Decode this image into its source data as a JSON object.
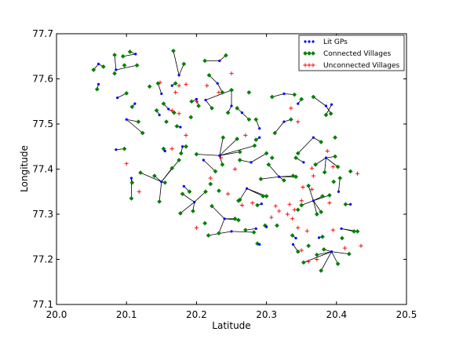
{
  "chart_data": {
    "type": "scatter",
    "xlabel": "Latitude",
    "ylabel": "Longitude",
    "xlim": [
      20.0,
      20.5
    ],
    "ylim": [
      77.1,
      77.7
    ],
    "xticks": [
      "20.0",
      "20.1",
      "20.2",
      "20.3",
      "20.4",
      "20.5"
    ],
    "yticks": [
      "77.1",
      "77.2",
      "77.3",
      "77.4",
      "77.5",
      "77.6",
      "77.7"
    ],
    "legend_position": "top-right",
    "legend": [
      {
        "label": "Lit GPs",
        "marker": "dot",
        "color": "#0000ff"
      },
      {
        "label": "Connected Villages",
        "marker": "diamond",
        "color": "#008000"
      },
      {
        "label": "Unconnected Villages",
        "marker": "plus",
        "color": "#ff0000"
      }
    ],
    "colors": {
      "lit": "#0000ff",
      "connected": "#008000",
      "unconnected": "#ff0000",
      "link": "#000000"
    },
    "lit_gps": [
      {
        "x": 20.06,
        "y": 77.633,
        "links": [
          [
            20.053,
            77.62
          ],
          [
            20.067,
            77.627
          ]
        ]
      },
      {
        "x": 20.06,
        "y": 77.588,
        "links": [
          [
            20.058,
            77.577
          ]
        ]
      },
      {
        "x": 20.085,
        "y": 77.62,
        "links": [
          [
            20.083,
            77.653
          ],
          [
            20.115,
            77.63
          ]
        ]
      },
      {
        "x": 20.113,
        "y": 77.655,
        "links": [
          [
            20.105,
            77.66
          ],
          [
            20.095,
            77.65
          ]
        ]
      },
      {
        "x": 20.087,
        "y": 77.558,
        "links": [
          [
            20.1,
            77.568
          ]
        ]
      },
      {
        "x": 20.112,
        "y": 77.545,
        "links": [
          [
            20.108,
            77.538
          ]
        ]
      },
      {
        "x": 20.1,
        "y": 77.51,
        "links": [
          [
            20.123,
            77.48
          ],
          [
            20.117,
            77.505
          ]
        ]
      },
      {
        "x": 20.085,
        "y": 77.443,
        "links": [
          [
            20.097,
            77.445
          ]
        ]
      },
      {
        "x": 20.15,
        "y": 77.567,
        "links": [
          [
            20.145,
            77.59
          ]
        ]
      },
      {
        "x": 20.16,
        "y": 77.533,
        "links": [
          [
            20.153,
            77.545
          ],
          [
            20.168,
            77.525
          ]
        ]
      },
      {
        "x": 20.147,
        "y": 77.52,
        "links": [
          [
            20.143,
            77.53
          ]
        ]
      },
      {
        "x": 20.177,
        "y": 77.493,
        "links": [
          [
            20.172,
            77.495
          ]
        ]
      },
      {
        "x": 20.165,
        "y": 77.585,
        "links": [
          [
            20.17,
            77.59
          ]
        ]
      },
      {
        "x": 20.175,
        "y": 77.608,
        "links": [
          [
            20.167,
            77.662
          ],
          [
            20.182,
            77.633
          ]
        ]
      },
      {
        "x": 20.2,
        "y": 77.555,
        "links": [
          [
            20.193,
            77.55
          ],
          [
            20.203,
            77.54
          ]
        ]
      },
      {
        "x": 20.213,
        "y": 77.553,
        "links": [
          [
            20.25,
            77.575
          ],
          [
            20.222,
            77.535
          ]
        ]
      },
      {
        "x": 20.23,
        "y": 77.59,
        "links": [
          [
            20.218,
            77.608
          ],
          [
            20.237,
            77.57
          ]
        ]
      },
      {
        "x": 20.233,
        "y": 77.64,
        "links": [
          [
            20.212,
            77.64
          ],
          [
            20.242,
            77.652
          ]
        ]
      },
      {
        "x": 20.25,
        "y": 77.54,
        "links": [
          [
            20.25,
            77.575
          ],
          [
            20.245,
            77.525
          ]
        ]
      },
      {
        "x": 20.265,
        "y": 77.525,
        "links": [
          [
            20.275,
            77.51
          ],
          [
            20.258,
            77.535
          ]
        ]
      },
      {
        "x": 20.29,
        "y": 77.49,
        "links": [
          [
            20.285,
            77.51
          ]
        ]
      },
      {
        "x": 20.29,
        "y": 77.47,
        "links": [
          [
            20.285,
            77.465
          ]
        ]
      },
      {
        "x": 20.325,
        "y": 77.567,
        "links": [
          [
            20.308,
            77.56
          ],
          [
            20.34,
            77.565
          ]
        ]
      },
      {
        "x": 20.345,
        "y": 77.545,
        "links": [
          [
            20.35,
            77.555
          ]
        ]
      },
      {
        "x": 20.325,
        "y": 77.505,
        "links": [
          [
            20.312,
            77.48
          ],
          [
            20.335,
            77.51
          ]
        ]
      },
      {
        "x": 20.367,
        "y": 77.47,
        "links": [
          [
            20.345,
            77.435
          ],
          [
            20.378,
            77.46
          ]
        ]
      },
      {
        "x": 20.385,
        "y": 77.54,
        "links": [
          [
            20.367,
            77.56
          ],
          [
            20.392,
            77.523
          ]
        ]
      },
      {
        "x": 20.393,
        "y": 77.543,
        "links": [
          [
            20.385,
            77.52
          ]
        ]
      },
      {
        "x": 20.353,
        "y": 77.415,
        "links": [
          [
            20.342,
            77.425
          ]
        ]
      },
      {
        "x": 20.155,
        "y": 77.44,
        "links": [
          [
            20.153,
            77.445
          ]
        ]
      },
      {
        "x": 20.18,
        "y": 77.45,
        "links": [
          [
            20.185,
            77.45
          ],
          [
            20.178,
            77.435
          ]
        ]
      },
      {
        "x": 20.107,
        "y": 77.38,
        "links": [
          [
            20.107,
            77.335
          ],
          [
            20.108,
            77.37
          ]
        ]
      },
      {
        "x": 20.15,
        "y": 77.372,
        "links": [
          [
            20.12,
            77.392
          ],
          [
            20.147,
            77.328
          ],
          [
            20.155,
            77.37
          ],
          [
            20.165,
            77.402
          ],
          [
            20.175,
            77.42
          ],
          [
            20.14,
            77.385
          ]
        ]
      },
      {
        "x": 20.182,
        "y": 77.362,
        "links": [
          [
            20.19,
            77.35
          ]
        ]
      },
      {
        "x": 20.197,
        "y": 77.327,
        "links": [
          [
            20.18,
            77.345
          ],
          [
            20.177,
            77.302
          ],
          [
            20.195,
            77.307
          ],
          [
            20.213,
            77.35
          ]
        ]
      },
      {
        "x": 20.21,
        "y": 77.42,
        "links": [
          [
            20.227,
            77.395
          ]
        ]
      },
      {
        "x": 20.233,
        "y": 77.43,
        "links": [
          [
            20.2,
            77.433
          ],
          [
            20.262,
            77.438
          ],
          [
            20.283,
            77.452
          ],
          [
            20.238,
            77.47
          ],
          [
            20.258,
            77.467
          ],
          [
            20.237,
            77.41
          ]
        ]
      },
      {
        "x": 20.24,
        "y": 77.29,
        "links": [
          [
            20.222,
            77.318
          ],
          [
            20.232,
            77.258
          ],
          [
            20.255,
            77.29
          ],
          [
            20.26,
            77.287
          ]
        ]
      },
      {
        "x": 20.25,
        "y": 77.262,
        "links": [
          [
            20.217,
            77.253
          ],
          [
            20.282,
            77.26
          ]
        ]
      },
      {
        "x": 20.272,
        "y": 77.357,
        "links": [
          [
            20.262,
            77.332
          ],
          [
            20.295,
            77.34
          ],
          [
            20.3,
            77.34
          ]
        ]
      },
      {
        "x": 20.293,
        "y": 77.323,
        "links": [
          [
            20.287,
            77.32
          ]
        ]
      },
      {
        "x": 20.285,
        "y": 77.268,
        "links": [
          [
            20.27,
            77.265
          ]
        ]
      },
      {
        "x": 20.3,
        "y": 77.272,
        "links": [
          [
            20.298,
            77.275
          ]
        ]
      },
      {
        "x": 20.29,
        "y": 77.233,
        "links": [
          [
            20.287,
            77.235
          ]
        ]
      },
      {
        "x": 20.318,
        "y": 77.383,
        "links": [
          [
            20.292,
            77.378
          ],
          [
            20.325,
            77.375
          ],
          [
            20.338,
            77.385
          ],
          [
            20.342,
            77.383
          ],
          [
            20.303,
            77.41
          ]
        ]
      },
      {
        "x": 20.367,
        "y": 77.33,
        "links": [
          [
            20.35,
            77.32
          ],
          [
            20.378,
            77.305
          ],
          [
            20.38,
            77.34
          ],
          [
            20.36,
            77.363
          ],
          [
            20.39,
            77.342
          ],
          [
            20.372,
            77.3
          ]
        ]
      },
      {
        "x": 20.385,
        "y": 77.425,
        "links": [
          [
            20.37,
            77.41
          ],
          [
            20.398,
            77.428
          ],
          [
            20.402,
            77.405
          ],
          [
            20.383,
            77.393
          ]
        ]
      },
      {
        "x": 20.393,
        "y": 77.217,
        "links": [
          [
            20.353,
            77.193
          ],
          [
            20.382,
            77.222
          ],
          [
            20.378,
            77.175
          ],
          [
            20.402,
            77.19
          ],
          [
            20.418,
            77.212
          ],
          [
            20.372,
            77.21
          ]
        ]
      },
      {
        "x": 20.407,
        "y": 77.268,
        "links": [
          [
            20.43,
            77.262
          ],
          [
            20.425,
            77.262
          ]
        ]
      },
      {
        "x": 20.403,
        "y": 77.35,
        "links": [
          [
            20.405,
            77.38
          ]
        ]
      },
      {
        "x": 20.42,
        "y": 77.322,
        "links": [
          [
            20.413,
            77.322
          ]
        ]
      },
      {
        "x": 20.375,
        "y": 77.248,
        "links": [
          [
            20.38,
            77.25
          ]
        ]
      },
      {
        "x": 20.342,
        "y": 77.247,
        "links": [
          [
            20.337,
            77.253
          ]
        ]
      },
      {
        "x": 20.338,
        "y": 77.233,
        "links": [
          [
            20.345,
            77.217
          ]
        ]
      },
      {
        "x": 20.278,
        "y": 77.415,
        "links": [
          [
            20.3,
            77.435
          ],
          [
            20.262,
            77.42
          ]
        ]
      }
    ],
    "extra_connected": [
      [
        20.083,
        77.612
      ],
      [
        20.097,
        77.63
      ],
      [
        20.133,
        77.583
      ],
      [
        20.157,
        77.505
      ],
      [
        20.192,
        77.515
      ],
      [
        20.275,
        77.57
      ],
      [
        20.308,
        77.425
      ],
      [
        20.22,
        77.367
      ],
      [
        20.232,
        77.352
      ],
      [
        20.212,
        77.28
      ],
      [
        20.26,
        77.33
      ],
      [
        20.315,
        77.275
      ],
      [
        20.345,
        77.31
      ],
      [
        20.36,
        77.23
      ],
      [
        20.396,
        77.372
      ],
      [
        20.408,
        77.247
      ],
      [
        20.398,
        77.47
      ],
      [
        20.42,
        77.395
      ]
    ],
    "unconnected": [
      [
        20.148,
        77.592
      ],
      [
        20.175,
        77.585
      ],
      [
        20.185,
        77.588
      ],
      [
        20.17,
        77.57
      ],
      [
        20.175,
        77.523
      ],
      [
        20.215,
        77.585
      ],
      [
        20.232,
        77.57
      ],
      [
        20.25,
        77.612
      ],
      [
        20.165,
        77.53
      ],
      [
        20.2,
        77.55
      ],
      [
        20.185,
        77.475
      ],
      [
        20.165,
        77.445
      ],
      [
        20.235,
        77.425
      ],
      [
        20.255,
        77.4
      ],
      [
        20.27,
        77.475
      ],
      [
        20.1,
        77.412
      ],
      [
        20.118,
        77.35
      ],
      [
        20.22,
        77.38
      ],
      [
        20.245,
        77.345
      ],
      [
        20.2,
        77.27
      ],
      [
        20.265,
        77.32
      ],
      [
        20.28,
        77.325
      ],
      [
        20.307,
        77.293
      ],
      [
        20.313,
        77.318
      ],
      [
        20.318,
        77.307
      ],
      [
        20.33,
        77.3
      ],
      [
        20.333,
        77.322
      ],
      [
        20.337,
        77.29
      ],
      [
        20.34,
        77.31
      ],
      [
        20.345,
        77.27
      ],
      [
        20.35,
        77.33
      ],
      [
        20.358,
        77.263
      ],
      [
        20.352,
        77.36
      ],
      [
        20.365,
        77.355
      ],
      [
        20.39,
        77.325
      ],
      [
        20.365,
        77.402
      ],
      [
        20.367,
        77.385
      ],
      [
        20.395,
        77.405
      ],
      [
        20.387,
        77.44
      ],
      [
        20.43,
        77.39
      ],
      [
        20.435,
        77.23
      ],
      [
        20.35,
        77.22
      ],
      [
        20.36,
        77.195
      ],
      [
        20.335,
        77.535
      ],
      [
        20.345,
        77.505
      ],
      [
        20.372,
        77.2
      ],
      [
        20.395,
        77.265
      ],
      [
        20.412,
        77.225
      ]
    ]
  }
}
